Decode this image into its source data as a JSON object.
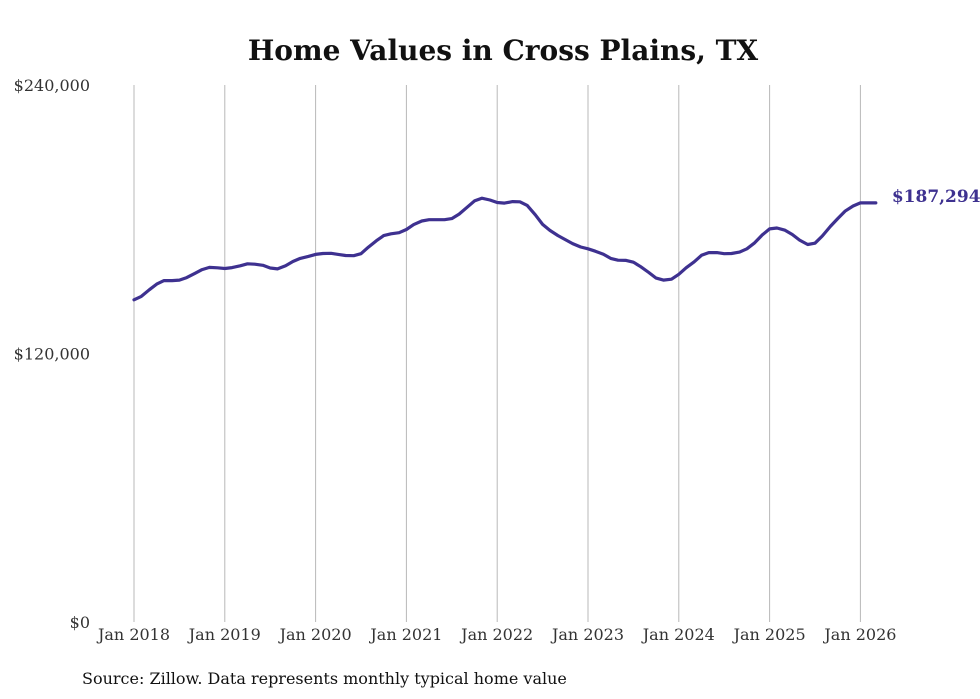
{
  "chart_data": {
    "type": "line",
    "title": "Home Values in Cross Plains, TX",
    "xlabel": "",
    "ylabel": "",
    "ylim": [
      0,
      240000
    ],
    "y_ticks": [
      {
        "value": 0,
        "label": "$0"
      },
      {
        "value": 120000,
        "label": "$120,000"
      },
      {
        "value": 240000,
        "label": "$240,000"
      }
    ],
    "x_ticks": [
      {
        "value": 2018,
        "label": "Jan 2018"
      },
      {
        "value": 2019,
        "label": "Jan 2019"
      },
      {
        "value": 2020,
        "label": "Jan 2020"
      },
      {
        "value": 2021,
        "label": "Jan 2021"
      },
      {
        "value": 2022,
        "label": "Jan 2022"
      },
      {
        "value": 2023,
        "label": "Jan 2023"
      },
      {
        "value": 2024,
        "label": "Jan 2024"
      },
      {
        "value": 2025,
        "label": "Jan 2025"
      },
      {
        "value": 2026,
        "label": "Jan 2026"
      }
    ],
    "xlim": [
      2018,
      2026.17
    ],
    "grid": "vertical",
    "series": [
      {
        "name": "Typical home value",
        "color": "#3e3190",
        "end_label": "$187,294",
        "x": [
          2018.0,
          2018.08,
          2018.17,
          2018.25,
          2018.33,
          2018.42,
          2018.5,
          2018.58,
          2018.67,
          2018.75,
          2018.83,
          2018.92,
          2019.0,
          2019.08,
          2019.17,
          2019.25,
          2019.33,
          2019.42,
          2019.5,
          2019.58,
          2019.67,
          2019.75,
          2019.83,
          2019.92,
          2020.0,
          2020.08,
          2020.17,
          2020.25,
          2020.33,
          2020.42,
          2020.5,
          2020.58,
          2020.67,
          2020.75,
          2020.83,
          2020.92,
          2021.0,
          2021.08,
          2021.17,
          2021.25,
          2021.33,
          2021.42,
          2021.5,
          2021.58,
          2021.67,
          2021.75,
          2021.83,
          2021.92,
          2022.0,
          2022.08,
          2022.17,
          2022.25,
          2022.33,
          2022.42,
          2022.5,
          2022.58,
          2022.67,
          2022.75,
          2022.83,
          2022.92,
          2023.0,
          2023.08,
          2023.17,
          2023.25,
          2023.33,
          2023.42,
          2023.5,
          2023.58,
          2023.67,
          2023.75,
          2023.83,
          2023.92,
          2024.0,
          2024.08,
          2024.17,
          2024.25,
          2024.33,
          2024.42,
          2024.5,
          2024.58,
          2024.67,
          2024.75,
          2024.83,
          2024.92,
          2025.0,
          2025.08,
          2025.17,
          2025.25,
          2025.33,
          2025.42,
          2025.5,
          2025.58,
          2025.67,
          2025.75,
          2025.83,
          2025.92,
          2026.0,
          2026.08,
          2026.17
        ],
        "values": [
          144000,
          145500,
          148500,
          151000,
          152600,
          152600,
          152800,
          153900,
          155800,
          157500,
          158500,
          158300,
          158000,
          158400,
          159200,
          160100,
          159900,
          159400,
          158200,
          157800,
          159200,
          161100,
          162500,
          163400,
          164300,
          164700,
          164800,
          164300,
          163800,
          163700,
          164600,
          167500,
          170400,
          172700,
          173500,
          174000,
          175400,
          177600,
          179200,
          179800,
          179800,
          179800,
          180300,
          182300,
          185400,
          188200,
          189400,
          188600,
          187500,
          187200,
          187900,
          187800,
          186200,
          182000,
          177700,
          175000,
          172700,
          170900,
          169100,
          167600,
          166800,
          165700,
          164400,
          162500,
          161700,
          161600,
          160800,
          158800,
          156200,
          153700,
          152800,
          153200,
          155400,
          158300,
          161000,
          163900,
          165100,
          165100,
          164600,
          164700,
          165300,
          166800,
          169300,
          173000,
          175700,
          176100,
          175100,
          173200,
          170700,
          168700,
          169300,
          172500,
          176800,
          180300,
          183600,
          185900,
          187294,
          187294,
          187294
        ]
      }
    ],
    "source": "Source: Zillow. Data represents monthly typical home value"
  }
}
